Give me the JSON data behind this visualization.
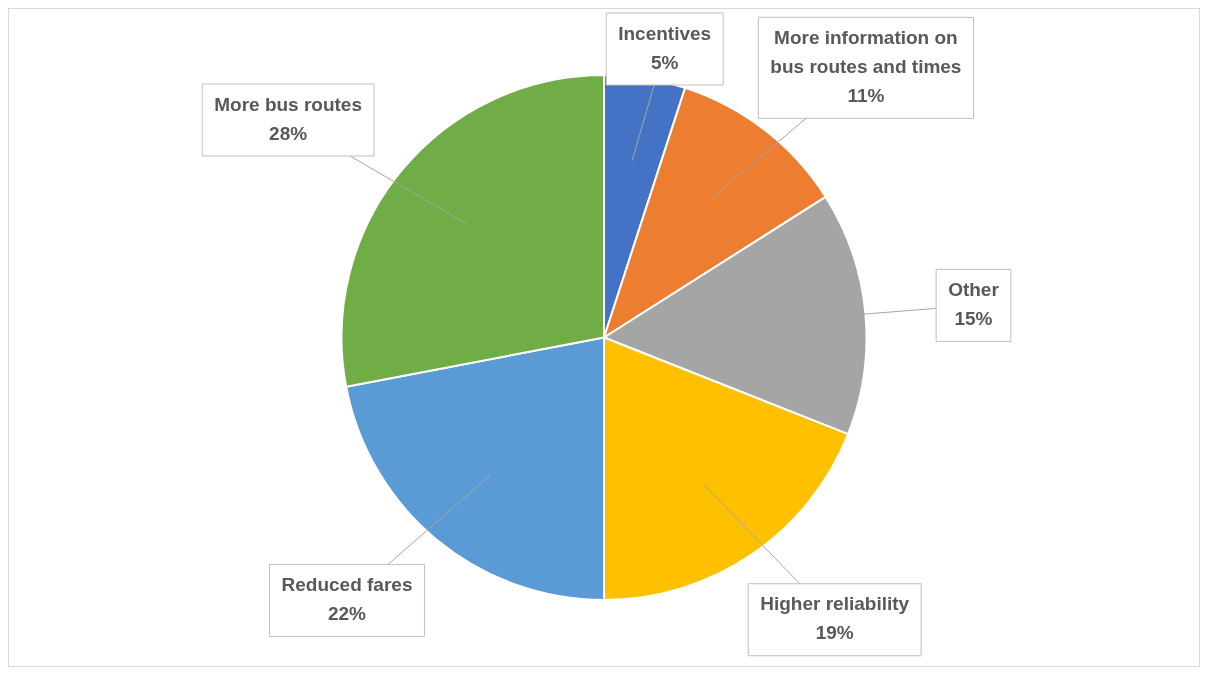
{
  "chart_data": {
    "type": "pie",
    "categories": [
      "Incentives",
      "More information on bus routes and times",
      "Other",
      "Higher reliability",
      "Reduced fares",
      "More bus routes"
    ],
    "values": [
      5,
      11,
      15,
      19,
      22,
      28
    ],
    "value_labels": [
      "5%",
      "11%",
      "15%",
      "19%",
      "22%",
      "28%"
    ],
    "colors": [
      "#4472c4",
      "#ed7d31",
      "#a5a5a5",
      "#ffc000",
      "#5b9bd5",
      "#70ad47"
    ],
    "legend": false
  }
}
